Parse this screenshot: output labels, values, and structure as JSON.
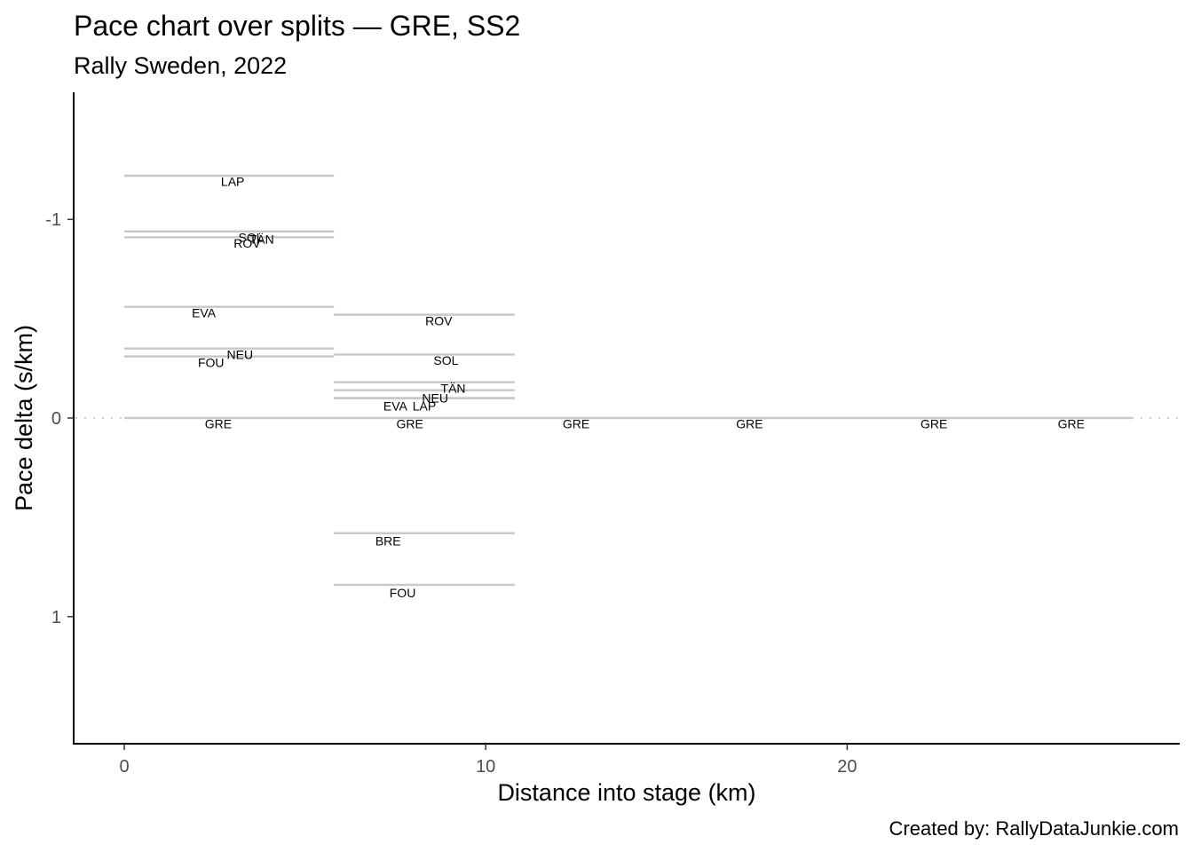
{
  "chart_data": {
    "type": "line",
    "title": "Pace chart over splits — GRE, SS2",
    "subtitle": "Rally Sweden, 2022",
    "xlabel": "Distance into stage (km)",
    "ylabel": "Pace delta (s/km)",
    "caption": "Created by: RallyDataJunkie.com",
    "xlim": [
      -1.4,
      29.2
    ],
    "ylim": [
      1.64,
      -1.64
    ],
    "y_reversed": true,
    "x_ticks": [
      0,
      10,
      20
    ],
    "x_tick_labels": [
      "0",
      "10",
      "20"
    ],
    "y_ticks": [
      -1,
      0,
      1
    ],
    "y_tick_labels": [
      "-1",
      "0",
      "1"
    ],
    "reference_line": 0,
    "segments": [
      {
        "driver": "LAP",
        "start": 0,
        "end": 5.8,
        "pace_delta": -1.22
      },
      {
        "driver": "SOL",
        "start": 0,
        "end": 5.8,
        "pace_delta": -0.94
      },
      {
        "driver": "TÄN",
        "start": 0,
        "end": 5.8,
        "pace_delta": -0.94
      },
      {
        "driver": "ROV",
        "start": 0,
        "end": 5.8,
        "pace_delta": -0.91
      },
      {
        "driver": "EVA",
        "start": 0,
        "end": 5.8,
        "pace_delta": -0.56
      },
      {
        "driver": "NEU",
        "start": 0,
        "end": 5.8,
        "pace_delta": -0.35
      },
      {
        "driver": "FOU",
        "start": 0,
        "end": 5.8,
        "pace_delta": -0.31
      },
      {
        "driver": "GRE",
        "start": 0,
        "end": 5.8,
        "pace_delta": 0
      },
      {
        "driver": "ROV",
        "start": 5.8,
        "end": 10.8,
        "pace_delta": -0.52
      },
      {
        "driver": "SOL",
        "start": 5.8,
        "end": 10.8,
        "pace_delta": -0.32
      },
      {
        "driver": "TÄN",
        "start": 5.8,
        "end": 10.8,
        "pace_delta": -0.18
      },
      {
        "driver": "NEU",
        "start": 5.8,
        "end": 10.8,
        "pace_delta": -0.14
      },
      {
        "driver": "LAP",
        "start": 5.8,
        "end": 10.8,
        "pace_delta": -0.1
      },
      {
        "driver": "EVA",
        "start": 5.8,
        "end": 10.8,
        "pace_delta": -0.1
      },
      {
        "driver": "GRE",
        "start": 5.8,
        "end": 10.8,
        "pace_delta": 0
      },
      {
        "driver": "BRE",
        "start": 5.8,
        "end": 10.8,
        "pace_delta": 0.58
      },
      {
        "driver": "FOU",
        "start": 5.8,
        "end": 10.8,
        "pace_delta": 0.84
      },
      {
        "driver": "GRE",
        "start": 10.8,
        "end": 14.7,
        "pace_delta": 0
      },
      {
        "driver": "GRE",
        "start": 14.7,
        "end": 19.2,
        "pace_delta": 0
      },
      {
        "driver": "GRE",
        "start": 19.2,
        "end": 25.4,
        "pace_delta": 0
      },
      {
        "driver": "GRE",
        "start": 25.4,
        "end": 27.9,
        "pace_delta": 0
      }
    ],
    "labels": [
      {
        "text": "LAP",
        "x": 3.0,
        "y": -1.19
      },
      {
        "text": "SOL",
        "x": 3.5,
        "y": -0.91
      },
      {
        "text": "TÄN",
        "x": 3.8,
        "y": -0.9
      },
      {
        "text": "ROV",
        "x": 3.4,
        "y": -0.88
      },
      {
        "text": "EVA",
        "x": 2.2,
        "y": -0.53
      },
      {
        "text": "NEU",
        "x": 3.2,
        "y": -0.32
      },
      {
        "text": "FOU",
        "x": 2.4,
        "y": -0.28
      },
      {
        "text": "GRE",
        "x": 2.6,
        "y": 0.03
      },
      {
        "text": "ROV",
        "x": 8.7,
        "y": -0.49
      },
      {
        "text": "SOL",
        "x": 8.9,
        "y": -0.29
      },
      {
        "text": "TÄN",
        "x": 9.1,
        "y": -0.15
      },
      {
        "text": "NEU",
        "x": 8.6,
        "y": -0.1
      },
      {
        "text": "EVA",
        "x": 7.5,
        "y": -0.06
      },
      {
        "text": "LAP",
        "x": 8.3,
        "y": -0.06
      },
      {
        "text": "GRE",
        "x": 7.9,
        "y": 0.03
      },
      {
        "text": "BRE",
        "x": 7.3,
        "y": 0.62
      },
      {
        "text": "FOU",
        "x": 7.7,
        "y": 0.88
      },
      {
        "text": "GRE",
        "x": 12.5,
        "y": 0.03
      },
      {
        "text": "GRE",
        "x": 17.3,
        "y": 0.03
      },
      {
        "text": "GRE",
        "x": 22.4,
        "y": 0.03
      },
      {
        "text": "GRE",
        "x": 26.2,
        "y": 0.03
      }
    ],
    "colors": {
      "segment": "#c8c8c8",
      "reference": "#cccccc",
      "axis": "#000000",
      "tick_text": "#4d4d4d",
      "label_text": "#000000"
    }
  }
}
